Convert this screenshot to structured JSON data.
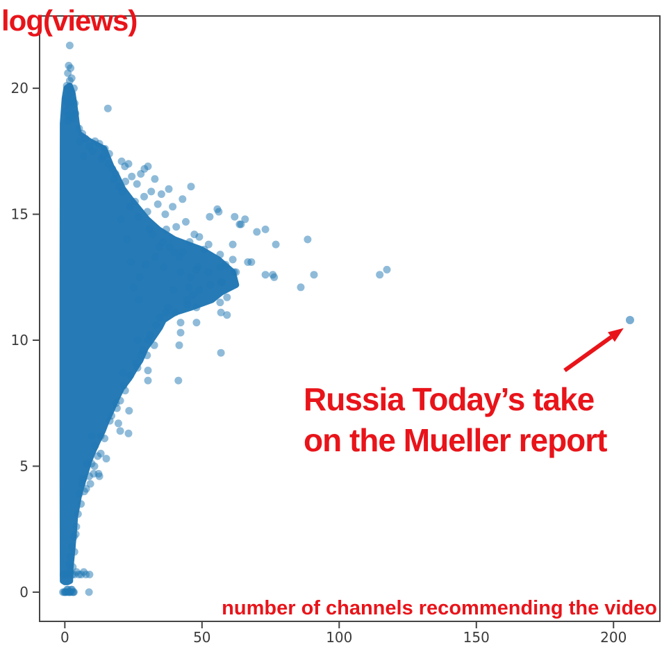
{
  "chart_data": {
    "type": "scatter",
    "title": "",
    "ylabel": "log(views)",
    "xlabel": "number of channels recommending the video",
    "xlim": [
      -9.2,
      216.9
    ],
    "ylim": [
      -1.16,
      22.87
    ],
    "xticks": [
      0,
      50,
      100,
      150,
      200
    ],
    "yticks": [
      0,
      5,
      10,
      15,
      20
    ],
    "grid": false,
    "legend": null,
    "marker_color": "#1f77b4",
    "marker_opacity": 0.5,
    "marker_radius_px": 5.5,
    "core_color": "#1f77b4",
    "axis_color": "#444444",
    "tick_label_color": "#3b3b3b",
    "annotation": {
      "lines": [
        "Russia Today’s take",
        "on the Mueller report"
      ],
      "color": "#e8141a",
      "target_xy": [
        206,
        10.8
      ],
      "arrow_from_xy": [
        182.2,
        8.8
      ],
      "arrow_to_xy": [
        203.7,
        10.48
      ]
    },
    "dense_core_polygon": [
      [
        -0.7,
        0.45
      ],
      [
        -0.8,
        5.0
      ],
      [
        -0.8,
        12.0
      ],
      [
        -0.7,
        18.6
      ],
      [
        0.0,
        19.6
      ],
      [
        0.6,
        20.0
      ],
      [
        1.8,
        20.1
      ],
      [
        2.8,
        19.8
      ],
      [
        3.6,
        19.2
      ],
      [
        4.3,
        18.6
      ],
      [
        5.0,
        18.2
      ],
      [
        9.0,
        17.9
      ],
      [
        14.3,
        17.6
      ],
      [
        16.9,
        16.9
      ],
      [
        19.0,
        16.5
      ],
      [
        21.2,
        16.0
      ],
      [
        24.0,
        15.6
      ],
      [
        27.0,
        15.2
      ],
      [
        30.0,
        14.8
      ],
      [
        34.1,
        14.4
      ],
      [
        40.0,
        14.0
      ],
      [
        49.8,
        13.6
      ],
      [
        56.0,
        13.2
      ],
      [
        61.2,
        12.7
      ],
      [
        62.4,
        12.2
      ],
      [
        57.0,
        11.9
      ],
      [
        53.6,
        11.6
      ],
      [
        46.0,
        11.3
      ],
      [
        40.2,
        11.1
      ],
      [
        36.0,
        10.8
      ],
      [
        34.6,
        10.5
      ],
      [
        31.5,
        10.0
      ],
      [
        29.5,
        9.7
      ],
      [
        27.5,
        9.2
      ],
      [
        25.7,
        8.9
      ],
      [
        23.5,
        8.5
      ],
      [
        20.7,
        8.1
      ],
      [
        18.5,
        7.6
      ],
      [
        16.9,
        7.2
      ],
      [
        15.2,
        6.8
      ],
      [
        13.8,
        6.4
      ],
      [
        12.0,
        6.0
      ],
      [
        10.3,
        5.6
      ],
      [
        8.8,
        5.2
      ],
      [
        7.7,
        4.8
      ],
      [
        6.3,
        4.3
      ],
      [
        5.2,
        3.9
      ],
      [
        4.4,
        3.4
      ],
      [
        3.7,
        3.0
      ],
      [
        3.2,
        2.3
      ],
      [
        2.7,
        1.7
      ],
      [
        2.0,
        0.9
      ],
      [
        1.9,
        0.45
      ],
      [
        1.0,
        0.4
      ],
      [
        0.0,
        0.4
      ]
    ],
    "points": [
      [
        1.8,
        21.7
      ],
      [
        1.4,
        20.9
      ],
      [
        2.1,
        20.8
      ],
      [
        1.1,
        20.6
      ],
      [
        2.5,
        20.4
      ],
      [
        1.8,
        20.3
      ],
      [
        0.7,
        20.1
      ],
      [
        3.3,
        20.0
      ],
      [
        1.4,
        19.9
      ],
      [
        2.2,
        19.8
      ],
      [
        0.6,
        19.6
      ],
      [
        2.8,
        19.5
      ],
      [
        0.4,
        19.5
      ],
      [
        1.0,
        19.4
      ],
      [
        3.6,
        19.4
      ],
      [
        2.0,
        19.3
      ],
      [
        15.7,
        19.2
      ],
      [
        0.5,
        19.1
      ],
      [
        2.6,
        19.0
      ],
      [
        1.3,
        18.9
      ],
      [
        3.0,
        18.8
      ],
      [
        0.9,
        18.7
      ],
      [
        2.1,
        18.9
      ],
      [
        3.9,
        19.0
      ],
      [
        5.2,
        18.4
      ],
      [
        6.4,
        18.2
      ],
      [
        7.5,
        18.0
      ],
      [
        11.0,
        17.9
      ],
      [
        5.5,
        17.9
      ],
      [
        12.6,
        17.8
      ],
      [
        8.9,
        17.7
      ],
      [
        14.6,
        17.6
      ],
      [
        10.1,
        17.5
      ],
      [
        16.2,
        17.4
      ],
      [
        6.8,
        17.3
      ],
      [
        14.0,
        17.3
      ],
      [
        13.4,
        17.2
      ],
      [
        20.7,
        17.1
      ],
      [
        23.2,
        17.0
      ],
      [
        15.9,
        17.0
      ],
      [
        21.9,
        16.9
      ],
      [
        17.3,
        16.8
      ],
      [
        29.0,
        16.8
      ],
      [
        30.3,
        16.9
      ],
      [
        18.5,
        16.6
      ],
      [
        27.7,
        16.6
      ],
      [
        24.4,
        16.5
      ],
      [
        32.8,
        16.4
      ],
      [
        17.8,
        16.4
      ],
      [
        22.1,
        16.3
      ],
      [
        26.3,
        16.2
      ],
      [
        19.8,
        16.1
      ],
      [
        46.0,
        16.1
      ],
      [
        37.9,
        16.0
      ],
      [
        31.5,
        15.9
      ],
      [
        21.0,
        15.9
      ],
      [
        35.2,
        15.8
      ],
      [
        28.9,
        15.7
      ],
      [
        42.9,
        15.6
      ],
      [
        25.6,
        15.5
      ],
      [
        33.9,
        15.4
      ],
      [
        23.8,
        15.3
      ],
      [
        39.3,
        15.3
      ],
      [
        55.6,
        15.2
      ],
      [
        30.1,
        15.1
      ],
      [
        56.1,
        15.1
      ],
      [
        36.6,
        15.0
      ],
      [
        26.8,
        14.9
      ],
      [
        61.9,
        14.9
      ],
      [
        52.8,
        14.9
      ],
      [
        65.7,
        14.8
      ],
      [
        20.4,
        14.8
      ],
      [
        44.1,
        14.7
      ],
      [
        63.7,
        14.6
      ],
      [
        64.2,
        14.6
      ],
      [
        40.6,
        14.5
      ],
      [
        73.1,
        14.4
      ],
      [
        30.8,
        14.4
      ],
      [
        37.0,
        14.4
      ],
      [
        70.0,
        14.3
      ],
      [
        31.9,
        14.2
      ],
      [
        47.2,
        14.2
      ],
      [
        49.0,
        14.1
      ],
      [
        88.5,
        14.0
      ],
      [
        22.6,
        14.0
      ],
      [
        45.5,
        13.9
      ],
      [
        35.8,
        13.9
      ],
      [
        52.4,
        13.8
      ],
      [
        76.9,
        13.8
      ],
      [
        61.2,
        13.8
      ],
      [
        38.2,
        13.7
      ],
      [
        34.4,
        13.7
      ],
      [
        50.8,
        13.6
      ],
      [
        43.0,
        13.5
      ],
      [
        39.9,
        13.5
      ],
      [
        56.6,
        13.4
      ],
      [
        41.8,
        13.3
      ],
      [
        33.0,
        13.3
      ],
      [
        61.2,
        13.2
      ],
      [
        66.7,
        13.1
      ],
      [
        68.0,
        13.1
      ],
      [
        24.1,
        13.1
      ],
      [
        58.6,
        13.0
      ],
      [
        29.5,
        13.0
      ],
      [
        56.6,
        12.9
      ],
      [
        48.5,
        12.9
      ],
      [
        36.1,
        12.9
      ],
      [
        117.4,
        12.8
      ],
      [
        47.9,
        12.8
      ],
      [
        42.2,
        12.7
      ],
      [
        52.3,
        12.7
      ],
      [
        61.7,
        12.7
      ],
      [
        62.4,
        12.7
      ],
      [
        114.8,
        12.6
      ],
      [
        73.1,
        12.6
      ],
      [
        75.8,
        12.6
      ],
      [
        90.8,
        12.6
      ],
      [
        76.3,
        12.5
      ],
      [
        46.0,
        12.5
      ],
      [
        27.3,
        12.5
      ],
      [
        57.4,
        12.3
      ],
      [
        56.9,
        12.3
      ],
      [
        53.0,
        12.2
      ],
      [
        86.0,
        12.1
      ],
      [
        45.2,
        12.1
      ],
      [
        25.0,
        12.1
      ],
      [
        39.6,
        12.0
      ],
      [
        49.0,
        12.0
      ],
      [
        46.7,
        11.8
      ],
      [
        59.1,
        11.7
      ],
      [
        44.6,
        11.6
      ],
      [
        27.0,
        11.6
      ],
      [
        56.6,
        11.5
      ],
      [
        44.7,
        11.4
      ],
      [
        37.6,
        11.3
      ],
      [
        48.0,
        11.3
      ],
      [
        56.9,
        11.1
      ],
      [
        40.2,
        11.1
      ],
      [
        36.9,
        11.1
      ],
      [
        59.1,
        11.0
      ],
      [
        34.6,
        10.9
      ],
      [
        48.0,
        10.7
      ],
      [
        42.2,
        10.7
      ],
      [
        33.2,
        10.6
      ],
      [
        42.2,
        10.3
      ],
      [
        31.0,
        10.2
      ],
      [
        30.3,
        10.0
      ],
      [
        26.5,
        10.0
      ],
      [
        41.7,
        9.8
      ],
      [
        32.6,
        9.8
      ],
      [
        28.4,
        9.6
      ],
      [
        56.9,
        9.5
      ],
      [
        27.7,
        9.4
      ],
      [
        30.0,
        9.4
      ],
      [
        26.1,
        9.1
      ],
      [
        26.5,
        8.9
      ],
      [
        23.9,
        8.6
      ],
      [
        21.2,
        8.7
      ],
      [
        30.3,
        8.8
      ],
      [
        41.4,
        8.4
      ],
      [
        30.3,
        8.4
      ],
      [
        21.4,
        8.2
      ],
      [
        22.0,
        8.0
      ],
      [
        20.2,
        7.6
      ],
      [
        18.6,
        7.5
      ],
      [
        19.0,
        7.3
      ],
      [
        23.4,
        7.2
      ],
      [
        17.0,
        7.0
      ],
      [
        16.4,
        6.8
      ],
      [
        19.5,
        6.7
      ],
      [
        20.2,
        6.4
      ],
      [
        23.2,
        6.3
      ],
      [
        13.1,
        6.2
      ],
      [
        9.8,
        6.2
      ],
      [
        14.5,
        6.1
      ],
      [
        11.0,
        5.8
      ],
      [
        13.1,
        5.5
      ],
      [
        12.0,
        5.4
      ],
      [
        15.1,
        5.3
      ],
      [
        9.8,
        5.1
      ],
      [
        8.0,
        5.1
      ],
      [
        10.8,
        5.0
      ],
      [
        12.3,
        4.7
      ],
      [
        10.5,
        4.7
      ],
      [
        12.6,
        4.6
      ],
      [
        8.9,
        4.6
      ],
      [
        6.7,
        4.5
      ],
      [
        9.3,
        4.3
      ],
      [
        6.2,
        4.3
      ],
      [
        7.8,
        4.1
      ],
      [
        7.1,
        4.0
      ],
      [
        5.3,
        3.9
      ],
      [
        5.9,
        3.5
      ],
      [
        4.8,
        3.1
      ],
      [
        4.2,
        2.6
      ],
      [
        4.0,
        2.3
      ],
      [
        3.3,
        2.2
      ],
      [
        2.6,
        1.8
      ],
      [
        3.5,
        1.6
      ],
      [
        2.2,
        1.4
      ],
      [
        1.6,
        1.1
      ],
      [
        2.9,
        1.0
      ],
      [
        -0.5,
        0.7
      ],
      [
        0.3,
        0.7
      ],
      [
        1.1,
        0.7
      ],
      [
        1.9,
        0.8
      ],
      [
        2.7,
        0.7
      ],
      [
        3.5,
        0.7
      ],
      [
        4.3,
        0.8
      ],
      [
        5.1,
        0.7
      ],
      [
        6.0,
        0.7
      ],
      [
        6.9,
        0.8
      ],
      [
        7.7,
        0.7
      ],
      [
        9.0,
        0.7
      ],
      [
        -0.7,
        0.0
      ],
      [
        -0.2,
        0.0
      ],
      [
        0.3,
        0.0
      ],
      [
        0.8,
        0.1
      ],
      [
        1.3,
        0.0
      ],
      [
        1.8,
        0.0
      ],
      [
        2.3,
        0.1
      ],
      [
        2.8,
        0.0
      ],
      [
        3.3,
        0.0
      ],
      [
        0.1,
        0.0
      ],
      [
        0.6,
        0.0
      ],
      [
        1.1,
        0.1
      ],
      [
        1.6,
        0.0
      ],
      [
        2.1,
        0.0
      ],
      [
        2.6,
        0.1
      ],
      [
        3.1,
        0.0
      ],
      [
        8.8,
        0.0
      ]
    ]
  }
}
